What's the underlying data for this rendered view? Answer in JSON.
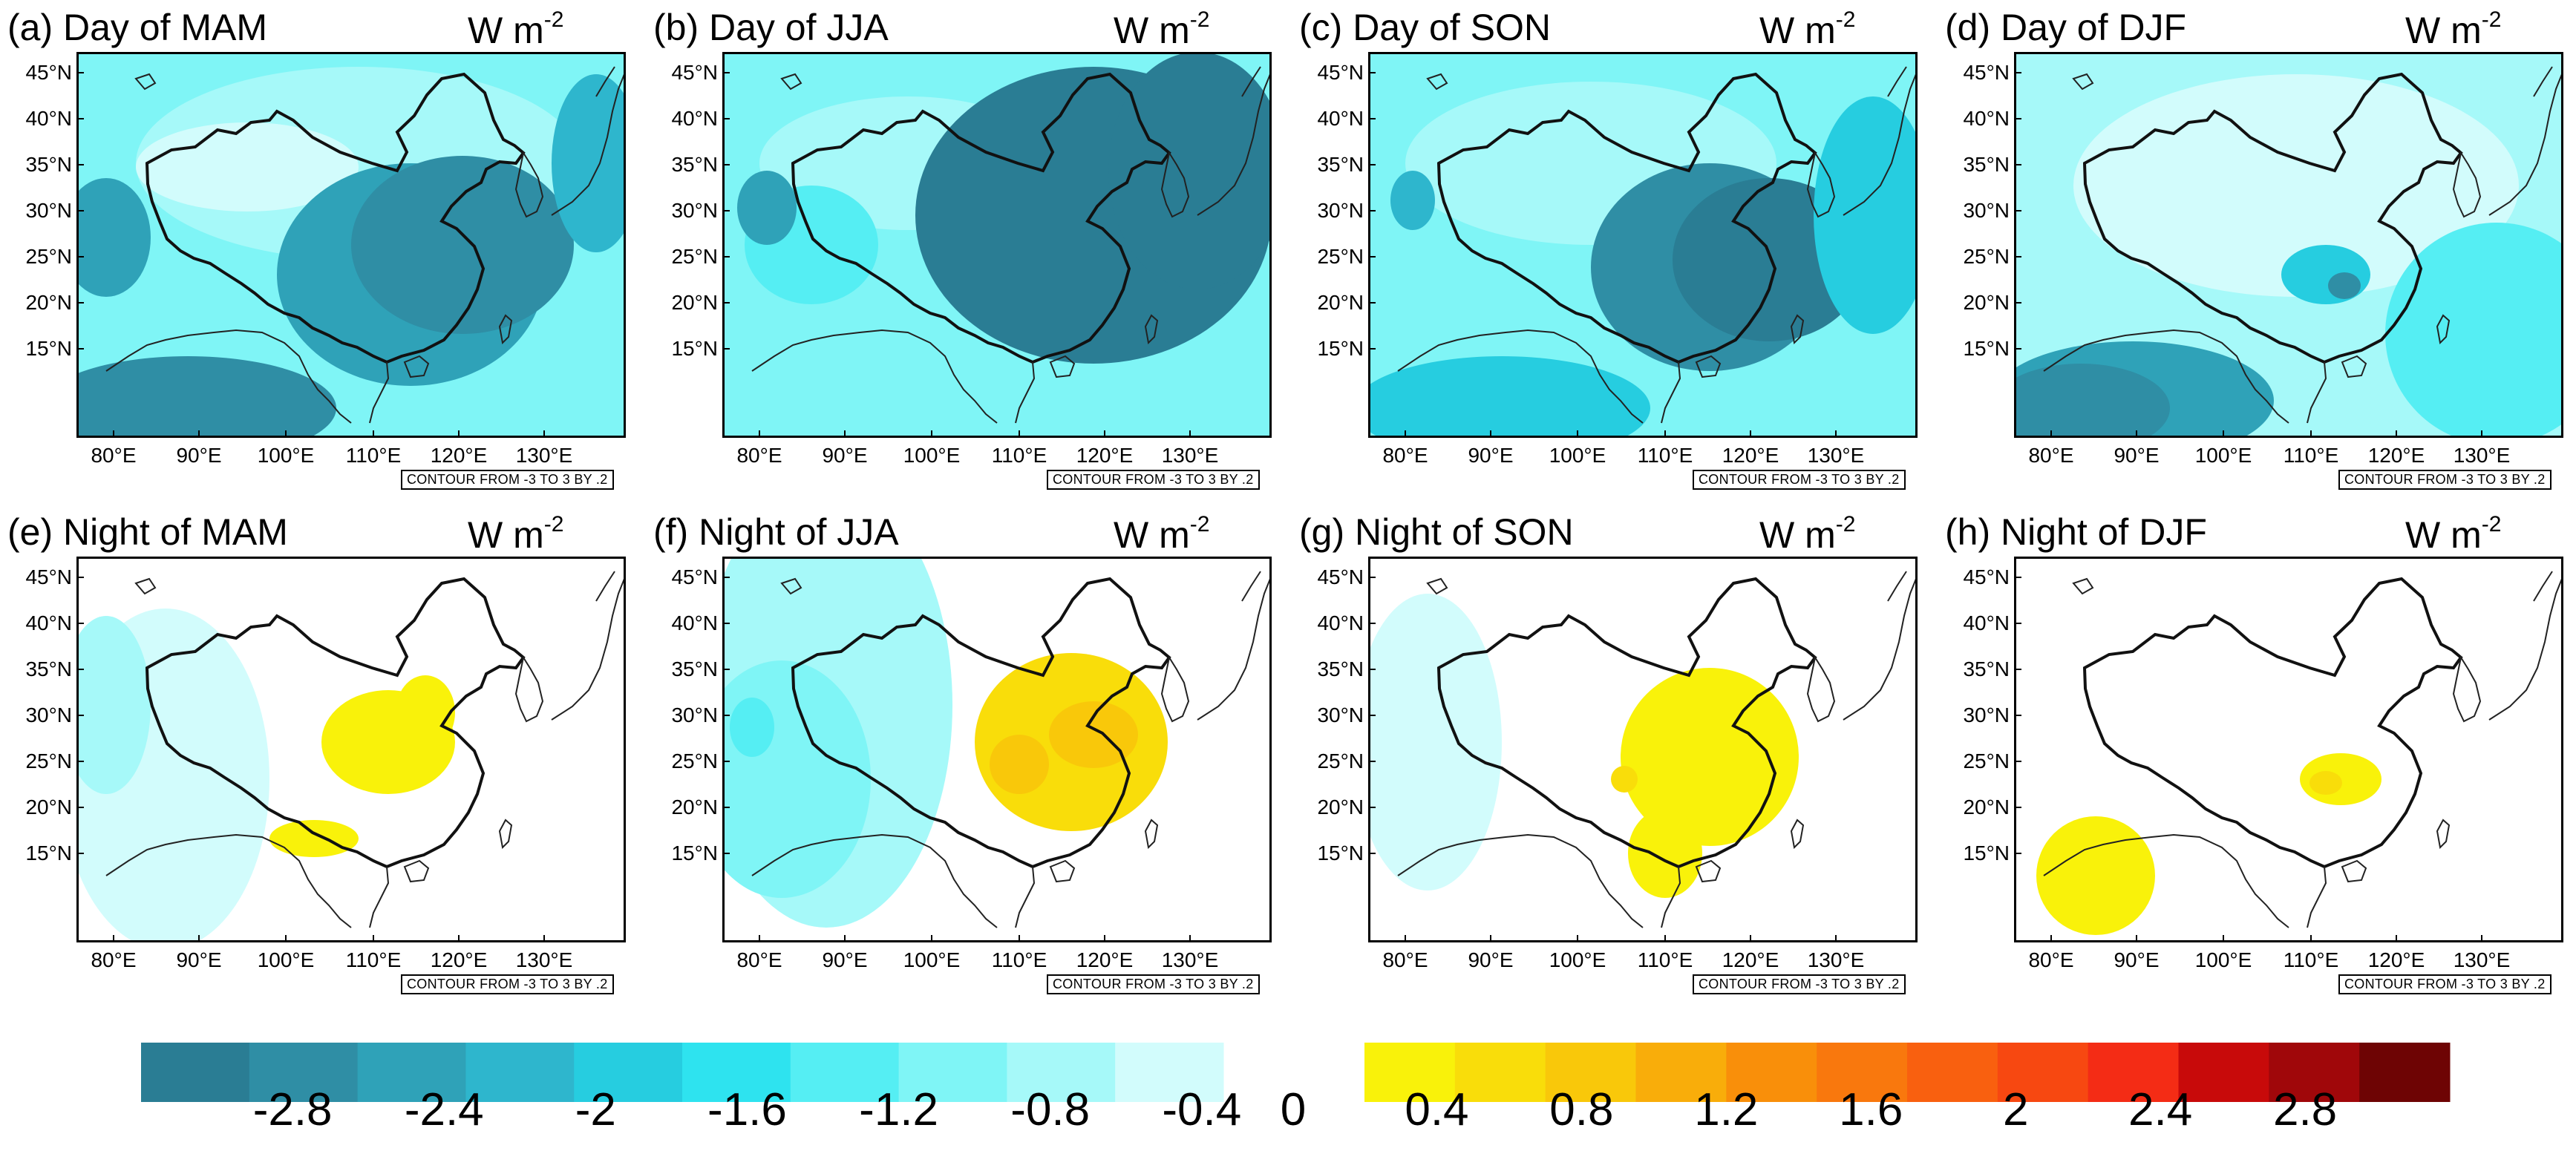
{
  "panels": [
    {
      "title": "(a) Day of MAM",
      "mode": "day",
      "season": "MAM"
    },
    {
      "title": "(b) Day of JJA",
      "mode": "day",
      "season": "JJA"
    },
    {
      "title": "(c) Day of SON",
      "mode": "day",
      "season": "SON"
    },
    {
      "title": "(d) Day of DJF",
      "mode": "day",
      "season": "DJF"
    },
    {
      "title": "(e) Night of MAM",
      "mode": "night",
      "season": "MAM"
    },
    {
      "title": "(f) Night of JJA",
      "mode": "night",
      "season": "JJA"
    },
    {
      "title": "(g) Night of SON",
      "mode": "night",
      "season": "SON"
    },
    {
      "title": "(h) Night of DJF",
      "mode": "night",
      "season": "DJF"
    }
  ],
  "units": {
    "base": "W m",
    "exponent": "-2"
  },
  "lat_labels": [
    "45°N",
    "40°N",
    "35°N",
    "30°N",
    "25°N",
    "20°N",
    "15°N"
  ],
  "lon_labels": [
    "80°E",
    "90°E",
    "100°E",
    "110°E",
    "120°E",
    "130°E"
  ],
  "contour_text": "CONTOUR FROM -3 TO 3 BY .2",
  "colorbar": {
    "negative_colors": [
      "#2a7d94",
      "#2f8ea5",
      "#2fa2b8",
      "#2eb6cd",
      "#26cde0",
      "#2ee3ef",
      "#55eef3",
      "#7ff5f6",
      "#a6f9f9",
      "#d2fcfc"
    ],
    "positive_colors": [
      "#f9f20a",
      "#f9dd0a",
      "#f9c80a",
      "#f9ad0a",
      "#f98f0a",
      "#f9780d",
      "#f9600f",
      "#f74811",
      "#f42c15",
      "#c80a0a",
      "#a0070a",
      "#6e0404"
    ],
    "labels": [
      "-2.8",
      "-2.4",
      "-2",
      "-1.6",
      "-1.2",
      "-0.8",
      "-0.4",
      "0",
      "0.4",
      "0.8",
      "1.2",
      "1.6",
      "2",
      "2.4",
      "2.8"
    ]
  }
}
